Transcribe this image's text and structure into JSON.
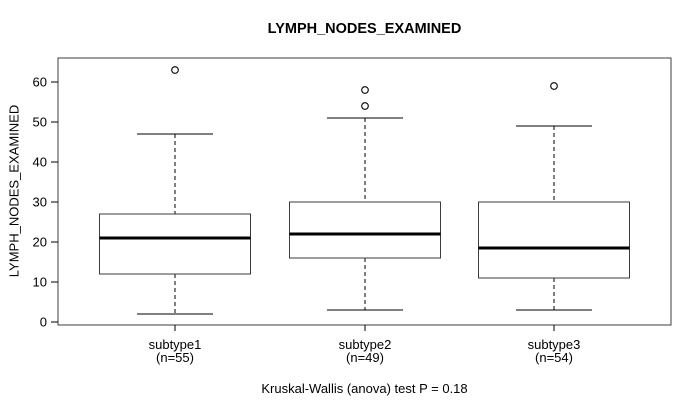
{
  "chart_data": {
    "type": "boxplot",
    "title": "LYMPH_NODES_EXAMINED",
    "ylabel": "LYMPH_NODES_EXAMINED",
    "xlabel": "",
    "caption": "Kruskal-Wallis (anova) test P = 0.18",
    "y_ticks": [
      0,
      10,
      20,
      30,
      40,
      50,
      60
    ],
    "ylim": [
      -0.75,
      66
    ],
    "grid": false,
    "legend": null,
    "groups": [
      {
        "label": "subtype1",
        "n_label": "(n=55)",
        "n": 55,
        "whisker_low": 2,
        "q1": 12,
        "median": 21,
        "q3": 27,
        "whisker_high": 47,
        "outliers": [
          63
        ]
      },
      {
        "label": "subtype2",
        "n_label": "(n=49)",
        "n": 49,
        "whisker_low": 3,
        "q1": 16,
        "median": 22,
        "q3": 30,
        "whisker_high": 51,
        "outliers": [
          54,
          58
        ]
      },
      {
        "label": "subtype3",
        "n_label": "(n=54)",
        "n": 54,
        "whisker_low": 3,
        "q1": 11,
        "median": 18.5,
        "q3": 30,
        "whisker_high": 49,
        "outliers": [
          59
        ]
      }
    ],
    "colors": {
      "background": "#ffffff",
      "axis": "#000000",
      "box_border": "#3d3d3d",
      "median": "#000000",
      "text": "#000000"
    }
  }
}
